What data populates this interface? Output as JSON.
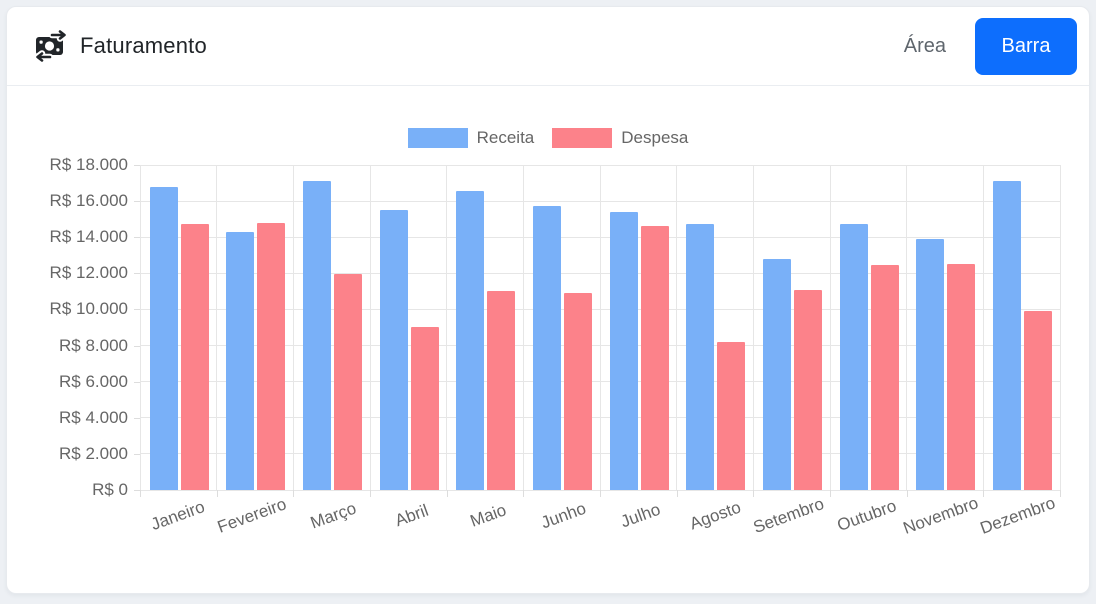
{
  "header": {
    "title": "Faturamento",
    "icon": "money-transfer-icon",
    "area_label": "Área",
    "bar_label": "Barra"
  },
  "colors": {
    "primary_button": "#0d6efd",
    "receita_bar": "#79b0f8",
    "despesa_bar": "#fc828a",
    "grid": "#e6e6e6",
    "axis_text": "#666666",
    "title_text": "#212529",
    "page_background": "#edf0f4"
  },
  "chart_data": {
    "type": "bar",
    "title": "",
    "categories": [
      "Janeiro",
      "Fevereiro",
      "Março",
      "Abril",
      "Maio",
      "Junho",
      "Julho",
      "Agosto",
      "Setembro",
      "Outubro",
      "Novembro",
      "Dezembro"
    ],
    "series": [
      {
        "name": "Receita",
        "color": "#79b0f8",
        "values": [
          16800,
          14300,
          17100,
          15500,
          16550,
          15750,
          15400,
          14750,
          12800,
          14750,
          13900,
          17100
        ]
      },
      {
        "name": "Despesa",
        "color": "#fc828a",
        "values": [
          14750,
          14800,
          11950,
          9050,
          11000,
          10900,
          14600,
          8200,
          11100,
          12450,
          12500,
          9900
        ]
      }
    ],
    "ylim": [
      0,
      18000
    ],
    "ytick_step": 2000,
    "ytick_labels": [
      "R$ 0",
      "R$ 2.000",
      "R$ 4.000",
      "R$ 6.000",
      "R$ 8.000",
      "R$ 10.000",
      "R$ 12.000",
      "R$ 14.000",
      "R$ 16.000",
      "R$ 18.000"
    ],
    "ytick_prefix": "R$ ",
    "grid": true,
    "legend_position": "top",
    "x_label_rotation_deg": -20
  }
}
